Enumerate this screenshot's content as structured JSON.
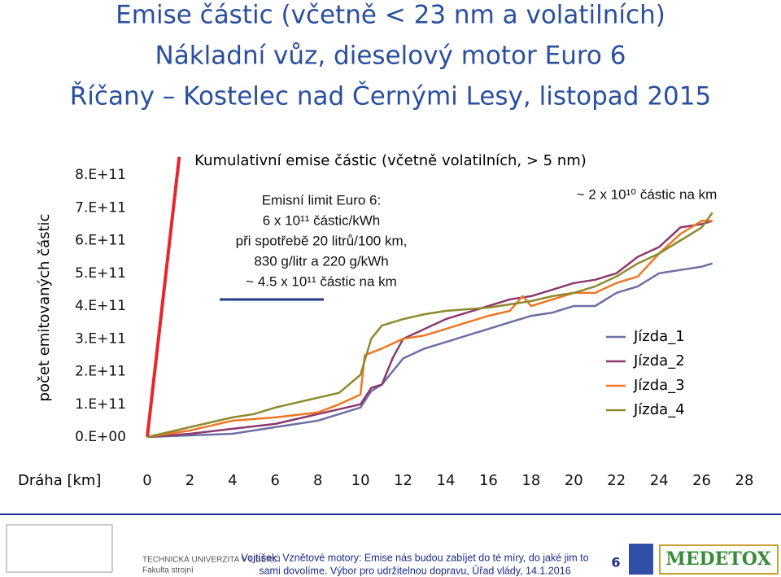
{
  "title_lines": [
    "Emise částic (včetně < 23 nm a volatilních)",
    "Nákladní vůz, dieselový motor Euro 6",
    "Říčany – Kostelec nad Černými Lesy, listopad 2015"
  ],
  "chart_data": {
    "type": "line",
    "title": "Kumulativní emise částic (včetně volatilních, > 5 nm)",
    "x_label": "Dráha [km]",
    "y_label": "počet emitovaných částic",
    "xlim": [
      0,
      28
    ],
    "xticks": [
      0,
      2,
      4,
      6,
      8,
      10,
      12,
      14,
      16,
      18,
      20,
      22,
      24,
      26,
      28
    ],
    "ylim": [
      0,
      800000000000
    ],
    "yticks": [
      {
        "value": 0,
        "label": "0.E+00"
      },
      {
        "value": 100000000000,
        "label": "1.E+11"
      },
      {
        "value": 200000000000,
        "label": "2.E+11"
      },
      {
        "value": 300000000000,
        "label": "3.E+11"
      },
      {
        "value": 400000000000,
        "label": "4.E+11"
      },
      {
        "value": 500000000000,
        "label": "5.E+11"
      },
      {
        "value": 600000000000,
        "label": "6.E+11"
      },
      {
        "value": 700000000000,
        "label": "7.E+11"
      },
      {
        "value": 800000000000,
        "label": "8.E+11"
      }
    ],
    "grid": false,
    "legend": "right",
    "limit_line": {
      "color": "#e8262b",
      "x": [
        0,
        1.5
      ],
      "values": [
        0,
        855000000000
      ]
    },
    "limit_note": [
      "Emisní limit Euro 6:",
      "6 x 10¹¹ částic/kWh",
      "při spotřebě 20 litrů/100 km,",
      "830 g/litr a 220 g/kWh",
      "~ 4.5 x 10¹¹ částic na km"
    ],
    "rate_note": "~ 2 x 10¹⁰ částic na km",
    "series": [
      {
        "name": "Jízda_1",
        "color": "#6e6ea6",
        "x": [
          0,
          2,
          4,
          6,
          8,
          9,
          10,
          10.5,
          11,
          11.5,
          12,
          13,
          14,
          15,
          16,
          17,
          18,
          19,
          20,
          21,
          22,
          23,
          24,
          25,
          26,
          26.5
        ],
        "values": [
          0,
          5000000000,
          10000000000,
          30000000000,
          50000000000,
          70000000000,
          90000000000,
          140000000000,
          160000000000,
          200000000000,
          240000000000,
          270000000000,
          290000000000,
          310000000000,
          330000000000,
          350000000000,
          370000000000,
          380000000000,
          400000000000,
          400000000000,
          440000000000,
          460000000000,
          500000000000,
          510000000000,
          520000000000,
          530000000000
        ]
      },
      {
        "name": "Jízda_2",
        "color": "#8b3a6e",
        "x": [
          0,
          2,
          4,
          6,
          8,
          9,
          10,
          10.5,
          11,
          11.5,
          12,
          13,
          14,
          15,
          16,
          17,
          18,
          19,
          20,
          21,
          22,
          23,
          24,
          25,
          26,
          26.5
        ],
        "values": [
          0,
          10000000000,
          25000000000,
          40000000000,
          70000000000,
          85000000000,
          100000000000,
          150000000000,
          160000000000,
          240000000000,
          300000000000,
          330000000000,
          360000000000,
          380000000000,
          400000000000,
          420000000000,
          430000000000,
          450000000000,
          470000000000,
          480000000000,
          500000000000,
          550000000000,
          580000000000,
          640000000000,
          650000000000,
          660000000000
        ]
      },
      {
        "name": "Jízda_3",
        "color": "#f07622",
        "x": [
          0,
          2,
          4,
          6,
          8,
          9,
          10,
          10.2,
          11,
          12,
          13,
          14,
          15,
          16,
          17,
          17.6,
          18,
          19,
          20,
          21,
          22,
          23,
          24,
          25,
          26,
          26.5
        ],
        "values": [
          0,
          20000000000,
          50000000000,
          60000000000,
          75000000000,
          100000000000,
          130000000000,
          250000000000,
          270000000000,
          300000000000,
          310000000000,
          330000000000,
          350000000000,
          370000000000,
          385000000000,
          430000000000,
          400000000000,
          420000000000,
          440000000000,
          440000000000,
          470000000000,
          490000000000,
          560000000000,
          620000000000,
          660000000000,
          660000000000
        ]
      },
      {
        "name": "Jízda_4",
        "color": "#8c8a2c",
        "x": [
          0,
          1,
          2,
          3,
          4,
          5,
          6,
          7,
          8,
          9,
          10,
          10.5,
          11,
          12,
          13,
          14,
          15,
          16,
          17,
          18,
          19,
          20,
          21,
          22,
          23,
          24,
          25,
          26,
          26.5
        ],
        "values": [
          0,
          15000000000,
          30000000000,
          45000000000,
          60000000000,
          70000000000,
          90000000000,
          105000000000,
          120000000000,
          135000000000,
          190000000000,
          300000000000,
          340000000000,
          360000000000,
          375000000000,
          385000000000,
          390000000000,
          395000000000,
          405000000000,
          415000000000,
          430000000000,
          440000000000,
          460000000000,
          490000000000,
          530000000000,
          560000000000,
          600000000000,
          640000000000,
          685000000000
        ]
      }
    ]
  },
  "footer": {
    "university": "TECHNICKÁ UNIVERZITA V LIBERCI",
    "faculty": "Fakulta strojní",
    "citation": [
      "Vojtíšek: Vznětové motory: Emise nás budou zabíjet do té míry, do jaké jim to",
      "sami dovolíme. Výbor pro udržitelnou dopravu, Úřad vlády, 14.1.2016"
    ],
    "page": "6",
    "partner": "MEDETOX"
  }
}
